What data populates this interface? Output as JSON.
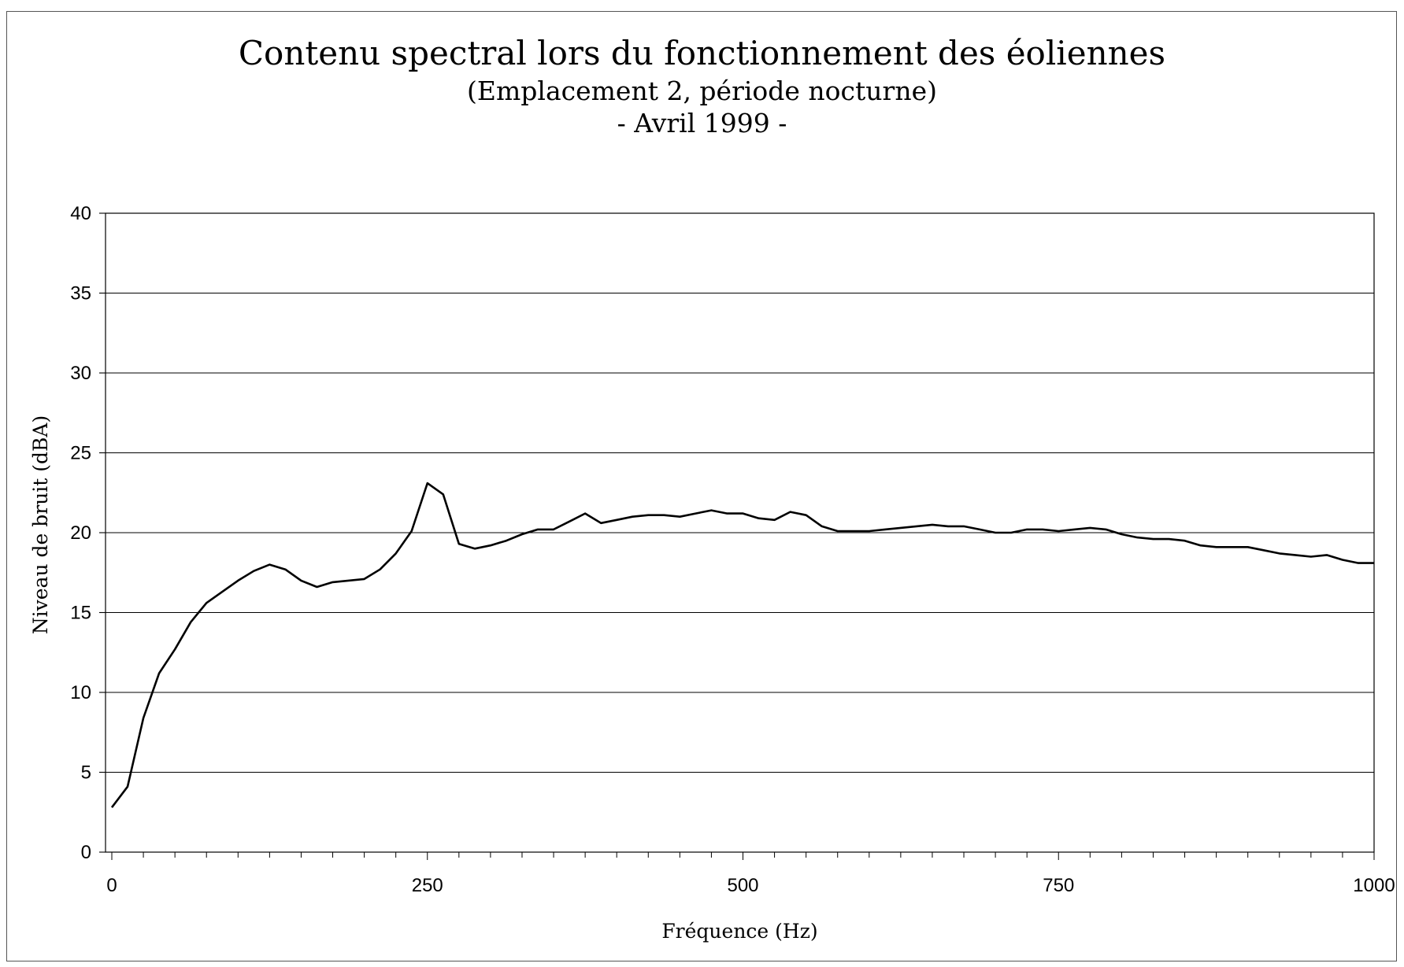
{
  "chart_data": {
    "type": "line",
    "title": "Contenu spectral lors du fonctionnement des éoliennes",
    "subtitle": "(Emplacement 2, période nocturne)",
    "subtitle2": "- Avril 1999 -",
    "xlabel": "Fréquence (Hz)",
    "ylabel": "Niveau de bruit (dBA)",
    "xlim": [
      0,
      1000
    ],
    "ylim": [
      0,
      40
    ],
    "xticks": [
      0,
      250,
      500,
      750,
      1000
    ],
    "yticks": [
      0,
      5,
      10,
      15,
      20,
      25,
      30,
      35,
      40
    ],
    "grid": true,
    "legend": "none",
    "line_color": "#000000",
    "series": [
      {
        "x": [
          0,
          12.5,
          25,
          37.5,
          50,
          62.5,
          75,
          87.5,
          100,
          112.5,
          125,
          137.5,
          150,
          162.5,
          175,
          187.5,
          200,
          212.5,
          225,
          237.5,
          250,
          262.5,
          275,
          287.5,
          300,
          312.5,
          325,
          337.5,
          350,
          362.5,
          375,
          387.5,
          400,
          412.5,
          425,
          437.5,
          450,
          462.5,
          475,
          487.5,
          500,
          512.5,
          525,
          537.5,
          550,
          562.5,
          575,
          587.5,
          600,
          612.5,
          625,
          637.5,
          650,
          662.5,
          675,
          687.5,
          700,
          712.5,
          725,
          737.5,
          750,
          762.5,
          775,
          787.5,
          800,
          812.5,
          825,
          837.5,
          850,
          862.5,
          875,
          887.5,
          900,
          912.5,
          925,
          937.5,
          950,
          962.5,
          975,
          987.5,
          1000
        ],
        "values": [
          2.8,
          4.1,
          8.4,
          11.2,
          12.7,
          14.4,
          15.6,
          16.3,
          17.0,
          17.6,
          18.0,
          17.7,
          17.0,
          16.6,
          16.9,
          17.0,
          17.1,
          17.7,
          18.7,
          20.1,
          23.1,
          22.4,
          19.3,
          19.0,
          19.2,
          19.5,
          19.9,
          20.2,
          20.2,
          20.7,
          21.2,
          20.6,
          20.8,
          21.0,
          21.1,
          21.1,
          21.0,
          21.2,
          21.4,
          21.2,
          21.2,
          20.9,
          20.8,
          21.3,
          21.1,
          20.4,
          20.1,
          20.1,
          20.1,
          20.2,
          20.3,
          20.4,
          20.5,
          20.4,
          20.4,
          20.2,
          20.0,
          20.0,
          20.2,
          20.2,
          20.1,
          20.2,
          20.3,
          20.2,
          19.9,
          19.7,
          19.6,
          19.6,
          19.5,
          19.2,
          19.1,
          19.1,
          19.1,
          18.9,
          18.7,
          18.6,
          18.5,
          18.6,
          18.3,
          18.1,
          18.1
        ]
      }
    ]
  }
}
